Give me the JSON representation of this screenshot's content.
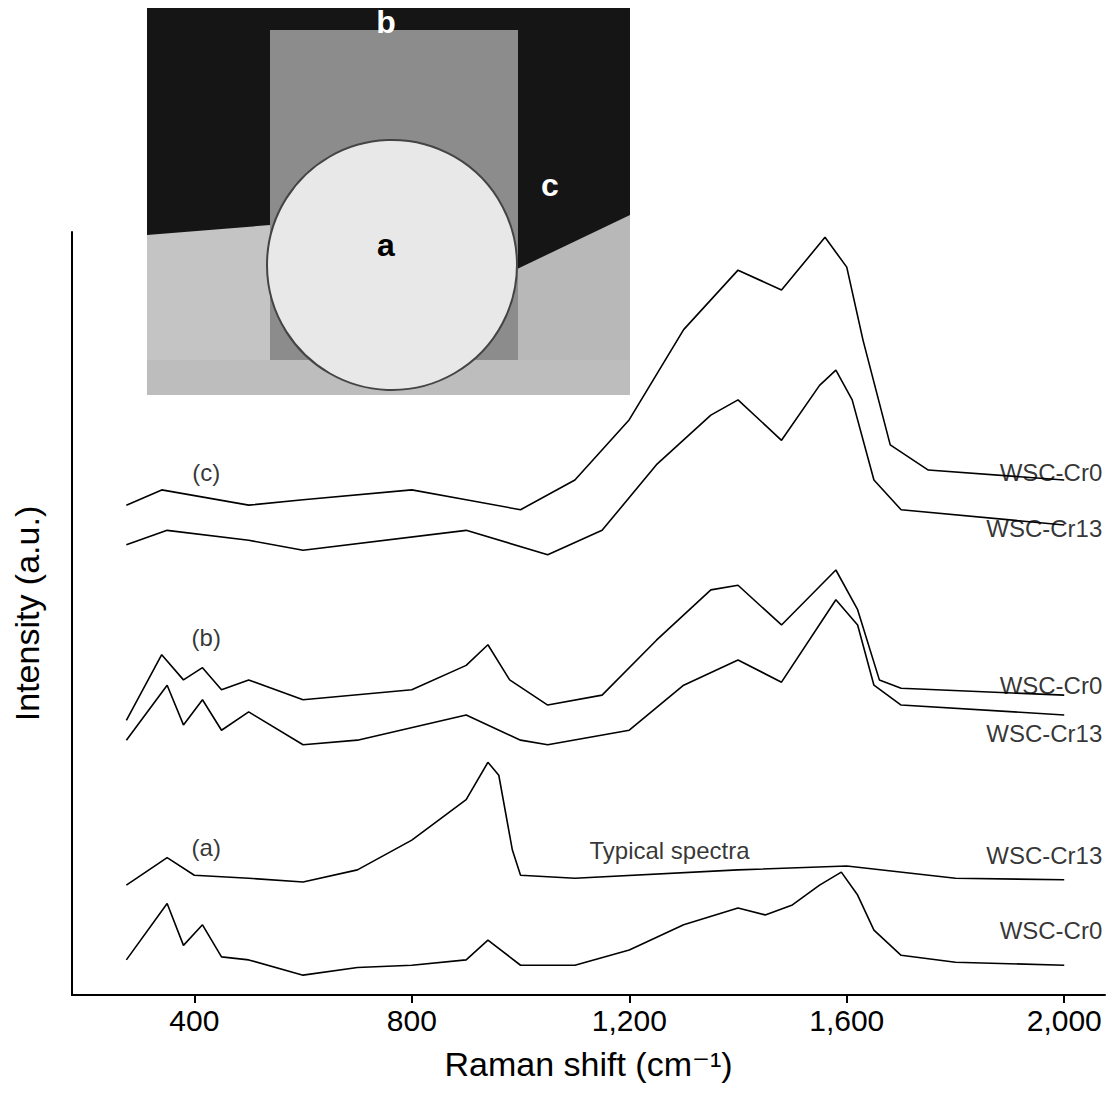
{
  "chart_data": {
    "type": "line",
    "x_label": "Raman shift (cm⁻¹)",
    "y_label": "Intensity (a.u.)",
    "xlim": [
      175,
      2075
    ],
    "xticks": [
      400,
      800,
      1200,
      1600,
      2000
    ],
    "ylim": [
      0,
      100
    ],
    "yticks": [],
    "tick_labels": "x",
    "grid": false,
    "series": [
      {
        "name": "WSC-Cr0",
        "color": "#000000",
        "label_at": [
          2070,
          8.5
        ],
        "x": [
          275,
          350,
          380,
          415,
          450,
          500,
          600,
          700,
          800,
          900,
          940,
          980,
          1000,
          1100,
          1200,
          1300,
          1400,
          1450,
          1500,
          1550,
          1590,
          1620,
          1650,
          1700,
          1800,
          2000
        ],
        "values": [
          4.6,
          12,
          6.5,
          9.2,
          5.0,
          4.6,
          2.6,
          3.6,
          3.9,
          4.6,
          7.2,
          5.0,
          3.9,
          3.9,
          5.9,
          9.2,
          11.4,
          10.5,
          11.8,
          14.4,
          16.1,
          13.1,
          8.5,
          5.2,
          4.3,
          3.9
        ]
      },
      {
        "name": "WSC-Cr13",
        "color": "#000000",
        "label_at": [
          2070,
          18.3
        ],
        "x": [
          275,
          350,
          400,
          500,
          600,
          700,
          800,
          900,
          940,
          960,
          985,
          1000,
          1100,
          1400,
          1600,
          1800,
          2000
        ],
        "values": [
          14.4,
          18,
          15.7,
          15.3,
          14.8,
          16.4,
          20.3,
          25.6,
          30.5,
          28.8,
          19,
          15.7,
          15.3,
          16.4,
          16.9,
          15.3,
          15.1
        ]
      },
      {
        "name": "WSC-Cr13",
        "color": "#000000",
        "label_at": [
          2070,
          34.3
        ],
        "x": [
          275,
          350,
          380,
          415,
          450,
          500,
          600,
          700,
          900,
          1000,
          1050,
          1200,
          1300,
          1400,
          1480,
          1580,
          1620,
          1650,
          1700,
          2000
        ],
        "values": [
          33.4,
          40.6,
          35.4,
          38.7,
          34.7,
          37.1,
          32.8,
          33.4,
          36.7,
          33.4,
          32.8,
          34.7,
          40.6,
          43.9,
          41,
          51.8,
          48.5,
          40.6,
          38,
          36.7
        ]
      },
      {
        "name": "WSC-Cr0",
        "color": "#000000",
        "label_at": [
          2070,
          40.5
        ],
        "x": [
          275,
          340,
          380,
          415,
          450,
          500,
          600,
          800,
          900,
          940,
          980,
          1050,
          1150,
          1250,
          1350,
          1400,
          1480,
          1580,
          1620,
          1660,
          1700,
          2000
        ],
        "values": [
          36,
          44.6,
          41.3,
          42.9,
          40,
          41.3,
          38.7,
          40,
          43.2,
          45.9,
          41.3,
          38,
          39.3,
          46.5,
          53.1,
          53.7,
          48.5,
          55.7,
          50.5,
          41.3,
          40.2,
          39.3
        ]
      },
      {
        "name": "WSC-Cr13",
        "color": "#000000",
        "label_at": [
          2070,
          61.2
        ],
        "x": [
          275,
          350,
          500,
          600,
          900,
          1050,
          1150,
          1250,
          1350,
          1400,
          1480,
          1550,
          1580,
          1610,
          1650,
          1700,
          2000
        ],
        "values": [
          59,
          60.9,
          59.6,
          58.3,
          60.9,
          57.7,
          60.9,
          69.5,
          76,
          78,
          72.7,
          79.9,
          81.9,
          78,
          67.5,
          63.6,
          61.6
        ]
      },
      {
        "name": "WSC-Cr0",
        "color": "#000000",
        "label_at": [
          2070,
          68.5
        ],
        "x": [
          275,
          340,
          500,
          600,
          800,
          900,
          1000,
          1100,
          1200,
          1300,
          1400,
          1480,
          1560,
          1600,
          1630,
          1680,
          1750,
          2000
        ],
        "values": [
          64.2,
          66.2,
          64.2,
          64.9,
          66.2,
          64.9,
          63.6,
          67.5,
          75.4,
          87.2,
          95,
          92.4,
          99.3,
          95.4,
          85.8,
          72.1,
          68.8,
          67.5
        ]
      }
    ],
    "annotations": [
      {
        "text": "(c)",
        "x": 422,
        "y": 68.5
      },
      {
        "text": "(b)",
        "x": 422,
        "y": 46.8
      },
      {
        "text": "(a)",
        "x": 422,
        "y": 19.3
      },
      {
        "text": "Typical spectra",
        "x": 1274,
        "y": 18.9
      }
    ],
    "inset": {
      "labels": [
        "a",
        "b",
        "c"
      ]
    }
  }
}
